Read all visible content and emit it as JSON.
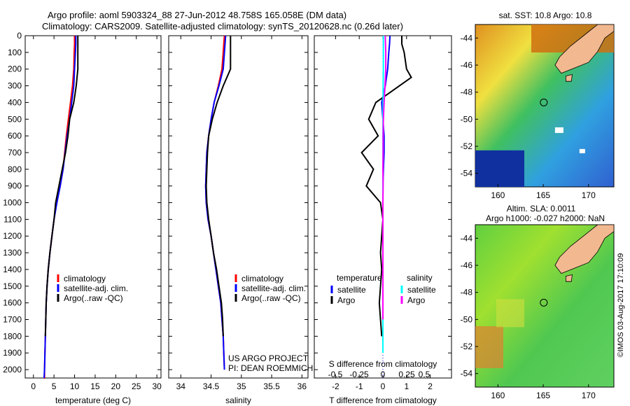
{
  "titles": {
    "line1": "Argo profile: aoml 5903324_88 27-Jun-2012 48.758S 165.058E (DM data)",
    "line2": "Climatology: CARS2009. Satellite-adjusted climatology: synTS_20120628.nc (0.26d later)"
  },
  "colors": {
    "climatology": "#ff0000",
    "satellite": "#0000ff",
    "argo": "#000000",
    "sal_satellite": "#00ffff",
    "sal_argo": "#ff00ff"
  },
  "legend_main": {
    "clim": "climatology",
    "sat": "satellite-adj. clim.",
    "argo": "Argo(..raw -QC)"
  },
  "legend_diff": {
    "temp_head": "temperature",
    "sal_head": "salinity",
    "sat": "satellite",
    "argo": "Argo"
  },
  "credits": {
    "line1": "US ARGO PROJECT",
    "line2": "PI: DEAN ROEMMICH"
  },
  "map_sst": {
    "title": "sat. SST: 10.8 Argo: 10.8"
  },
  "map_sla": {
    "title1": "Altim. SLA: 0.0011",
    "title2": "Argo h1000: -0.027 h2000: NaN"
  },
  "watermark": "©IMOS 03-Aug-2017 17:10:09",
  "chart_data": [
    {
      "type": "line",
      "xlabel": "temperature (deg C)",
      "ylabel": "",
      "xlim": [
        -2,
        31
      ],
      "ylim": [
        2050,
        0
      ],
      "xticks": [
        0,
        5,
        10,
        15,
        20,
        25,
        30
      ],
      "yticks": [
        0,
        100,
        200,
        300,
        400,
        500,
        600,
        700,
        800,
        900,
        1000,
        1100,
        1200,
        1300,
        1400,
        1500,
        1600,
        1700,
        1800,
        1900,
        2000
      ],
      "series": [
        {
          "name": "climatology",
          "color": "#ff0000",
          "x": [
            10.0,
            10.0,
            9.9,
            9.8,
            9.5,
            9.0,
            8.5,
            8.0,
            7.6,
            7.2,
            6.5,
            5.6,
            5.0,
            4.5,
            4.0,
            3.6,
            3.3,
            3.1,
            3.0,
            2.9,
            2.8,
            2.7,
            2.7,
            2.6
          ],
          "y": [
            0,
            50,
            100,
            200,
            300,
            400,
            500,
            600,
            700,
            800,
            900,
            1000,
            1100,
            1200,
            1300,
            1400,
            1500,
            1600,
            1700,
            1800,
            1900,
            2000,
            2050,
            2050
          ]
        },
        {
          "name": "satellite-adj. clim.",
          "color": "#0000ff",
          "x": [
            10.3,
            10.3,
            10.2,
            10.0,
            9.8,
            9.3,
            8.8,
            8.2,
            7.7,
            7.2,
            6.5,
            5.7,
            5.0,
            4.5,
            4.0,
            3.6,
            3.3,
            3.1,
            3.0,
            2.9,
            2.8,
            2.7,
            2.6
          ],
          "y": [
            0,
            50,
            100,
            200,
            300,
            400,
            500,
            600,
            700,
            800,
            900,
            1000,
            1100,
            1200,
            1300,
            1400,
            1500,
            1600,
            1700,
            1800,
            1900,
            2000,
            2050
          ]
        },
        {
          "name": "Argo(..raw -QC)",
          "color": "#000000",
          "x": [
            10.8,
            10.8,
            10.8,
            10.8,
            10.4,
            9.8,
            8.8,
            8.4,
            7.8,
            7.0,
            6.2,
            5.4,
            5.0,
            4.5,
            4.0,
            3.6,
            3.3,
            3.1,
            3.0,
            2.9
          ],
          "y": [
            0,
            50,
            100,
            200,
            300,
            400,
            500,
            600,
            700,
            800,
            900,
            1000,
            1100,
            1200,
            1300,
            1400,
            1500,
            1600,
            1700,
            1800
          ]
        }
      ]
    },
    {
      "type": "line",
      "xlabel": "salinity",
      "ylabel": "",
      "xlim": [
        33.8,
        36.1
      ],
      "ylim": [
        2050,
        0
      ],
      "xticks": [
        34,
        34.5,
        35,
        35.5,
        36
      ],
      "series": [
        {
          "name": "climatology",
          "color": "#ff0000",
          "x": [
            34.72,
            34.71,
            34.7,
            34.68,
            34.62,
            34.55,
            34.5,
            34.46,
            34.43,
            34.42,
            34.41,
            34.42,
            34.45,
            34.5,
            34.54,
            34.58,
            34.62,
            34.66,
            34.68,
            34.7,
            34.71,
            34.72
          ],
          "y": [
            0,
            50,
            100,
            200,
            300,
            400,
            500,
            600,
            700,
            800,
            900,
            1000,
            1100,
            1200,
            1300,
            1400,
            1500,
            1600,
            1700,
            1800,
            1900,
            2000
          ]
        },
        {
          "name": "satellite-adj. clim.",
          "color": "#0000ff",
          "x": [
            34.74,
            34.73,
            34.72,
            34.7,
            34.63,
            34.55,
            34.5,
            34.46,
            34.43,
            34.42,
            34.41,
            34.42,
            34.45,
            34.5,
            34.54,
            34.58,
            34.62,
            34.66,
            34.68,
            34.7,
            34.71,
            34.72
          ],
          "y": [
            0,
            50,
            100,
            200,
            300,
            400,
            500,
            600,
            700,
            800,
            900,
            1000,
            1100,
            1200,
            1300,
            1400,
            1500,
            1600,
            1700,
            1800,
            1900,
            2000
          ]
        },
        {
          "name": "Argo(..raw -QC)",
          "color": "#000000",
          "x": [
            34.82,
            34.82,
            34.82,
            34.82,
            34.7,
            34.6,
            34.52,
            34.46,
            34.44,
            34.43,
            34.42,
            34.43,
            34.46,
            34.5,
            34.54,
            34.59,
            34.63,
            34.67,
            34.69,
            34.7
          ],
          "y": [
            0,
            50,
            100,
            200,
            300,
            400,
            500,
            600,
            700,
            800,
            900,
            1000,
            1100,
            1200,
            1300,
            1400,
            1500,
            1600,
            1700,
            1800
          ]
        }
      ]
    },
    {
      "type": "line",
      "xlabel": "T difference from climatology",
      "xlabel2": "S difference from climatology",
      "ylabel": "",
      "xlim": [
        -2.9,
        2.9
      ],
      "ylim": [
        2050,
        0
      ],
      "xticks": [
        -2,
        -1,
        0,
        1,
        2
      ],
      "xticks2": [
        -0.5,
        -0.25,
        0,
        0.25,
        0.5
      ],
      "series": [
        {
          "name": "T satellite",
          "color": "#0000ff",
          "x": [
            0.3,
            0.28,
            0.25,
            0.2,
            0.1,
            -0.05,
            0.0,
            0.05,
            0.05,
            0.02,
            0.0,
            0.0,
            0.0,
            0.0,
            0.0,
            0.0,
            0.0,
            0.0,
            0.0
          ],
          "y": [
            0,
            50,
            100,
            200,
            300,
            400,
            500,
            600,
            700,
            800,
            900,
            1000,
            1100,
            1200,
            1300,
            1400,
            1500,
            1600,
            1700
          ]
        },
        {
          "name": "T Argo",
          "color": "#000000",
          "x": [
            0.8,
            0.8,
            0.9,
            1.0,
            1.2,
            -0.3,
            -0.6,
            -0.2,
            -0.9,
            -0.4,
            -0.7,
            -0.1,
            0.0,
            -0.05,
            -0.1,
            -0.05,
            -0.1,
            -0.15,
            -0.1,
            -0.05
          ],
          "y": [
            0,
            50,
            100,
            200,
            250,
            400,
            500,
            600,
            700,
            800,
            900,
            1000,
            1100,
            1200,
            1300,
            1400,
            1500,
            1600,
            1700,
            1800
          ]
        },
        {
          "name": "S satellite",
          "color": "#00ffff",
          "x": [
            0.02,
            0.02,
            0.02,
            0.02,
            0.01,
            0.01,
            0.0,
            0.0,
            0.0,
            0.0,
            0.0,
            0.0,
            0.0,
            0.0,
            0.0,
            0.0,
            0.0,
            0.0,
            0.0,
            0.0,
            0.0
          ],
          "y": [
            0,
            50,
            100,
            200,
            300,
            400,
            500,
            600,
            700,
            800,
            900,
            1000,
            1100,
            1200,
            1300,
            1400,
            1500,
            1600,
            1700,
            1800,
            1900
          ]
        },
        {
          "name": "S Argo",
          "color": "#ff00ff",
          "x": [
            0.1,
            0.11,
            0.12,
            0.12,
            0.09,
            0.05,
            0.02,
            0.01,
            0.01,
            0.0,
            0.01,
            0.0,
            0.0,
            0.0,
            0.0,
            0.0,
            0.0,
            0.0,
            0.0
          ],
          "y": [
            0,
            50,
            100,
            200,
            300,
            400,
            500,
            600,
            700,
            800,
            900,
            1000,
            1100,
            1200,
            1300,
            1400,
            1500,
            1600,
            1700
          ]
        }
      ]
    },
    {
      "type": "heatmap",
      "title": "sat. SST: 10.8 Argo: 10.8",
      "xlim": [
        157.5,
        172.8
      ],
      "ylim": [
        -55,
        -43
      ],
      "xticks": [
        160,
        165,
        170
      ],
      "yticks": [
        -44,
        -46,
        -48,
        -50,
        -52,
        -54
      ],
      "marker": {
        "lon": 165.058,
        "lat": -48.758
      }
    },
    {
      "type": "heatmap",
      "title": "Altim. SLA: 0.0011 / Argo h1000: -0.027 h2000: NaN",
      "xlim": [
        157.5,
        172.8
      ],
      "ylim": [
        -55,
        -43
      ],
      "xticks": [
        160,
        165,
        170
      ],
      "yticks": [
        -44,
        -46,
        -48,
        -50,
        -52,
        -54
      ],
      "marker": {
        "lon": 165.058,
        "lat": -48.758
      }
    }
  ]
}
